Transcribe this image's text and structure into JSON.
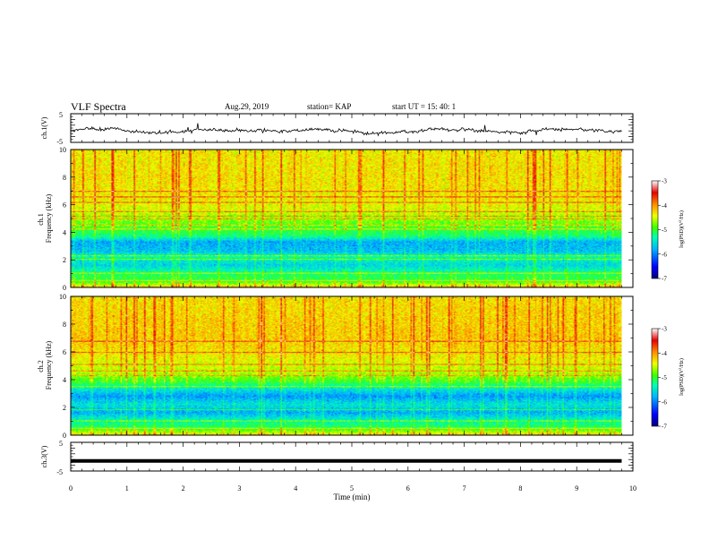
{
  "header": {
    "title": "VLF Spectra",
    "date": "Aug.29, 2019",
    "station": "station= KAP",
    "start": "start UT = 15: 40: 1"
  },
  "colors": {
    "spectrum_stops": [
      "#00007a",
      "#0000ff",
      "#00b4ff",
      "#00ffb4",
      "#3cff00",
      "#f0ff00",
      "#ff8c00",
      "#e60000",
      "#ffffff"
    ],
    "trace": "#000000",
    "frame": "#000000"
  },
  "chart_data": [
    {
      "type": "line",
      "panel": "ch1-waveform",
      "ylabel": "ch.1(V)",
      "ylim": [
        -5,
        5
      ],
      "yticks": [
        "5",
        "-5"
      ],
      "xlim": [
        0,
        10
      ],
      "series": [
        {
          "description": "noisy waveform around about -1 V, range roughly -3 to +2 V",
          "mean": -1.0
        }
      ]
    },
    {
      "type": "heatmap",
      "panel": "ch1-spectrogram",
      "ylabel": "ch.1 Frequency (kHz)",
      "ylim": [
        0,
        10
      ],
      "yticks": [
        "0",
        "2",
        "4",
        "6",
        "8",
        "10"
      ],
      "xlim": [
        0,
        9.8
      ],
      "profile_khz": [
        [
          0,
          -4.2
        ],
        [
          0.4,
          -5.0
        ],
        [
          0.9,
          -5.1
        ],
        [
          1.6,
          -5.6
        ],
        [
          2.2,
          -5.3
        ],
        [
          2.6,
          -5.7
        ],
        [
          3.3,
          -5.8
        ],
        [
          3.7,
          -5.2
        ],
        [
          4.4,
          -4.9
        ],
        [
          5.0,
          -4.7
        ],
        [
          5.5,
          -4.5
        ],
        [
          6.5,
          -4.35
        ],
        [
          8.0,
          -4.3
        ],
        [
          10,
          -4.35
        ]
      ],
      "horizontal_lines_khz": [
        0.5,
        1.0,
        2.0,
        2.3,
        4.2,
        4.5,
        5.0,
        5.2,
        5.5,
        6.2,
        6.6,
        7.0
      ],
      "colorbar": {
        "label": "log(PSD)(V^2/Hz)",
        "range": [
          -7,
          -3
        ],
        "ticks": [
          "-3",
          "-4",
          "-5",
          "-6",
          "-7"
        ]
      }
    },
    {
      "type": "heatmap",
      "panel": "ch2-spectrogram",
      "ylabel": "ch.2 Frequency (kHz)",
      "ylim": [
        0,
        10
      ],
      "yticks": [
        "0",
        "2",
        "4",
        "6",
        "8",
        "10"
      ],
      "xlim": [
        0,
        9.8
      ],
      "profile_khz": [
        [
          0,
          -4.3
        ],
        [
          0.5,
          -5.1
        ],
        [
          1.0,
          -5.3
        ],
        [
          1.6,
          -5.8
        ],
        [
          2.2,
          -5.5
        ],
        [
          2.8,
          -5.9
        ],
        [
          3.4,
          -5.4
        ],
        [
          3.8,
          -5.0
        ],
        [
          4.5,
          -4.6
        ],
        [
          5.5,
          -4.4
        ],
        [
          7.0,
          -4.2
        ],
        [
          8.5,
          -4.25
        ],
        [
          10,
          -4.3
        ]
      ],
      "horizontal_lines_khz": [
        0.5,
        1.0,
        1.8,
        3.5,
        4.3,
        4.6,
        5.1,
        6.0,
        6.8
      ],
      "colorbar": {
        "label": "log(PSD)(V^2/Hz)",
        "range": [
          -7,
          -3
        ],
        "ticks": [
          "-3",
          "-4",
          "-5",
          "-6",
          "-7"
        ]
      }
    },
    {
      "type": "line",
      "panel": "ch3-waveform",
      "ylabel": "ch.3(V)",
      "ylim": [
        -5,
        5
      ],
      "yticks": [
        "5",
        "-5"
      ],
      "xlim": [
        0,
        10
      ],
      "series": [
        {
          "description": "flat line",
          "values_y": [
            -1.5,
            -1.5
          ]
        }
      ]
    }
  ],
  "x_axis": {
    "label": "Time (min)",
    "range": [
      0,
      10
    ],
    "ticks": [
      "0",
      "1",
      "2",
      "3",
      "4",
      "5",
      "6",
      "7",
      "8",
      "9",
      "10"
    ]
  }
}
